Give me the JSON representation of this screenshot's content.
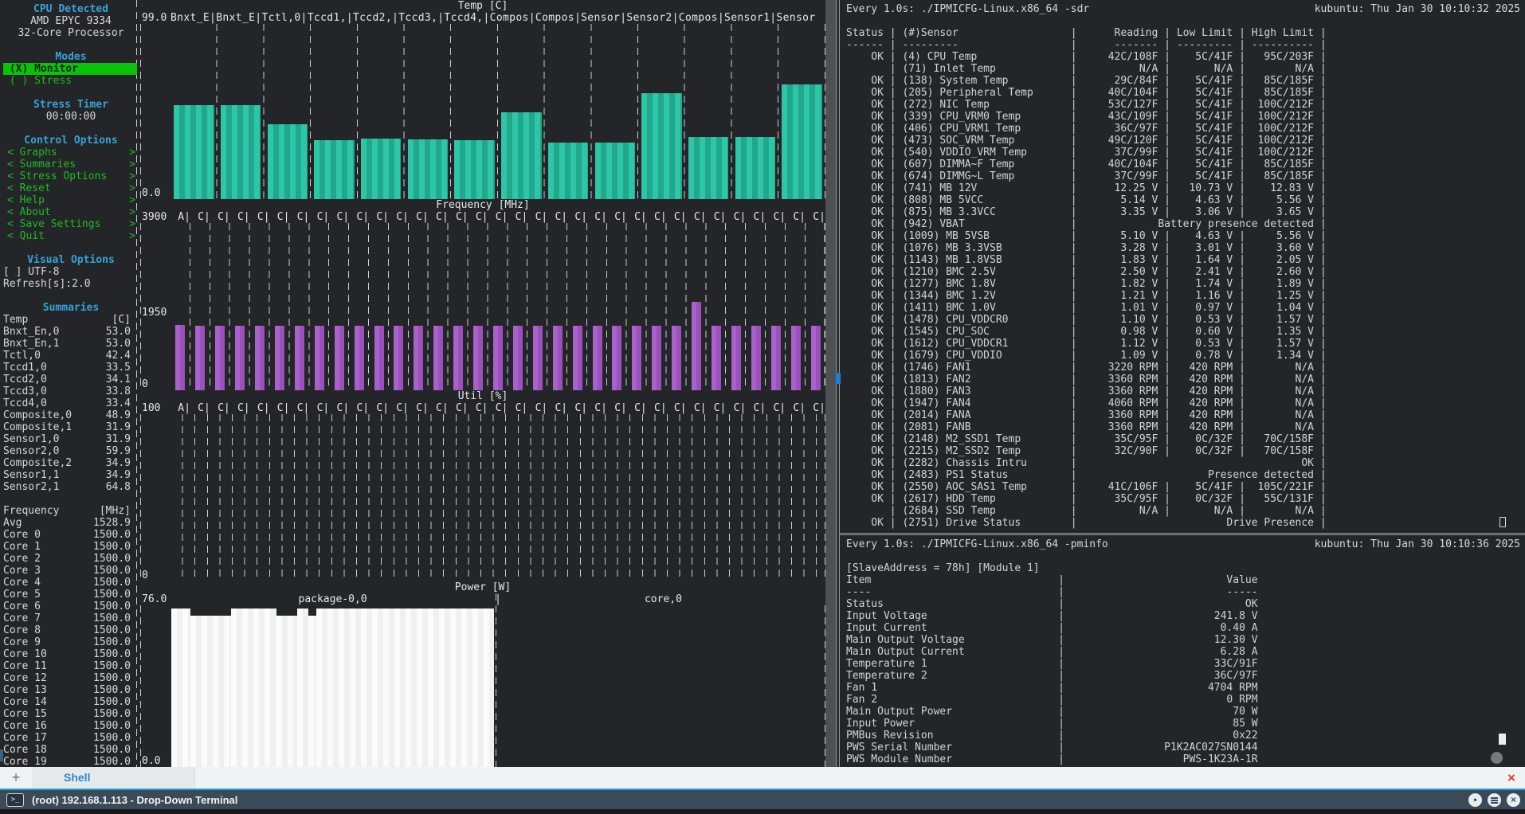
{
  "colors": {
    "background": "#232528",
    "accent_blue": "#36a3d9",
    "green": "#1fbc1f",
    "selected_green": "#09c309",
    "teal_bar": "#2dc6a6",
    "purple_bar": "#a05cc0",
    "power_white": "#fbfbfb",
    "titlebar": "#3b4a58",
    "titlebar_accent": "#2b9fdc",
    "tab_text": "#2b87c8",
    "close_red": "#e03b30"
  },
  "stui": {
    "cpu": {
      "title": "CPU Detected",
      "model": "AMD EPYC 9334",
      "cores": "32-Core Processor"
    },
    "modes": {
      "title": "Modes",
      "items": [
        {
          "label": "(X) Monitor",
          "selected": true
        },
        {
          "label": "( ) Stress",
          "selected": false
        }
      ]
    },
    "stress_timer": {
      "title": "Stress Timer",
      "value": "00:00:00"
    },
    "controls": {
      "title": "Control Options",
      "items": [
        "Graphs",
        "Summaries",
        "Stress Options",
        "Reset",
        "Help",
        "About",
        "Save Settings",
        "Quit"
      ],
      "arrow_left": "<",
      "arrow_right": ">"
    },
    "visual": {
      "title": "Visual Options",
      "items": [
        "[ ] UTF-8",
        "Refresh[s]:2.0"
      ]
    },
    "summaries": {
      "title": "Summaries",
      "temp_label": "Temp",
      "temp_unit": "[C]",
      "temp_rows": [
        [
          "Bnxt_En,0",
          "53.0"
        ],
        [
          "Bnxt_En,1",
          "53.0"
        ],
        [
          "Tctl,0",
          "42.4"
        ],
        [
          "Tccd1,0",
          "33.5"
        ],
        [
          "Tccd2,0",
          "34.1"
        ],
        [
          "Tccd3,0",
          "33.8"
        ],
        [
          "Tccd4,0",
          "33.4"
        ],
        [
          "Composite,0",
          "48.9"
        ],
        [
          "Composite,1",
          "31.9"
        ],
        [
          "Sensor1,0",
          "31.9"
        ],
        [
          "Sensor2,0",
          "59.9"
        ],
        [
          "Composite,2",
          "34.9"
        ],
        [
          "Sensor1,1",
          "34.9"
        ],
        [
          "Sensor2,1",
          "64.8"
        ]
      ],
      "freq_label": "Frequency",
      "freq_unit": "[MHz]",
      "freq_rows": [
        [
          "Avg",
          "1528.9"
        ],
        [
          "Core 0",
          "1500.0"
        ],
        [
          "Core 1",
          "1500.0"
        ],
        [
          "Core 2",
          "1500.0"
        ],
        [
          "Core 3",
          "1500.0"
        ],
        [
          "Core 4",
          "1500.0"
        ],
        [
          "Core 5",
          "1500.0"
        ],
        [
          "Core 6",
          "1500.0"
        ],
        [
          "Core 7",
          "1500.0"
        ],
        [
          "Core 8",
          "1500.0"
        ],
        [
          "Core 9",
          "1500.0"
        ],
        [
          "Core 10",
          "1500.0"
        ],
        [
          "Core 11",
          "1500.0"
        ],
        [
          "Core 12",
          "1500.0"
        ],
        [
          "Core 13",
          "1500.0"
        ],
        [
          "Core 14",
          "1500.0"
        ],
        [
          "Core 15",
          "1500.0"
        ],
        [
          "Core 16",
          "1500.0"
        ],
        [
          "Core 17",
          "1500.0"
        ],
        [
          "Core 18",
          "1500.0"
        ],
        [
          "Core 19",
          "1500.0"
        ]
      ]
    }
  },
  "chart_data": [
    {
      "id": "temp",
      "type": "bar",
      "title": "Temp [C]",
      "ymax": 99,
      "ymax_label": "99.0",
      "min_label": "0.0",
      "axis_header": "Bnxt_E|Bnxt_E|Tctl,0|Tccd1,|Tccd2,|Tccd3,|Tccd4,|Compos|Compos|Sensor|Sensor2|Compos|Sensor1|Sensor",
      "categories": [
        "Bnxt_En,0",
        "Bnxt_En,1",
        "Tctl,0",
        "Tccd1,0",
        "Tccd2,0",
        "Tccd3,0",
        "Tccd4,0",
        "Composite,0",
        "Composite,1",
        "Sensor1,0",
        "Sensor2,0",
        "Composite,2",
        "Sensor1,1",
        "Sensor2,1"
      ],
      "values": [
        53,
        53,
        42.4,
        33.5,
        34.1,
        33.8,
        33.4,
        48.9,
        31.9,
        31.9,
        59.9,
        34.9,
        34.9,
        64.8
      ]
    },
    {
      "id": "freq",
      "type": "bar",
      "title": "Frequency [MHz]",
      "ymax": 3900,
      "ymax_label": "3900",
      "mid_label": "1950",
      "min_label": "0",
      "columns": {
        "first": "A",
        "repeat": "C",
        "repeat_count": 32
      },
      "values": [
        1529,
        1500,
        1500,
        1500,
        1500,
        1500,
        1500,
        1500,
        1500,
        1500,
        1500,
        1500,
        1500,
        1500,
        1500,
        1500,
        1500,
        1500,
        1500,
        1500,
        1500,
        1500,
        1500,
        1500,
        1500,
        1500,
        2060,
        1500,
        1500,
        1500,
        1500,
        1500,
        1500
      ]
    },
    {
      "id": "util",
      "type": "bar",
      "title": "Util [%]",
      "ymax": 100,
      "ymax_label": "100",
      "min_label": "0",
      "columns": {
        "first": "A",
        "repeat": "C",
        "repeat_count": 32
      },
      "values": [
        0,
        0,
        0,
        0,
        0,
        0,
        0,
        0,
        0,
        0,
        0,
        0,
        0,
        0,
        0,
        0,
        0,
        0,
        0,
        0,
        0,
        0,
        0,
        0,
        0,
        0,
        0,
        0,
        0,
        0,
        0,
        0,
        0
      ]
    },
    {
      "id": "power",
      "type": "area",
      "title": "Power [W]",
      "ymax": 76,
      "ymax_label": "76.0",
      "min_label": "0.0",
      "series": [
        {
          "name": "package-0,0",
          "steps": [
            [
              0,
              0.06,
              74.5
            ],
            [
              0.06,
              0.185,
              71
            ],
            [
              0.185,
              0.325,
              74.5
            ],
            [
              0.325,
              0.39,
              71
            ],
            [
              0.39,
              0.425,
              74.5
            ],
            [
              0.425,
              0.45,
              71
            ],
            [
              0.45,
              1,
              74.5
            ]
          ]
        },
        {
          "name": "core,0",
          "steps": [
            [
              0,
              1,
              0
            ]
          ]
        }
      ],
      "separator": "|"
    }
  ],
  "watch_sdr": {
    "command": "Every 1.0s: ./IPMICFG-Linux.x86_64 -sdr",
    "host_time": "kubuntu: Thu Jan 30 10:10:32 2025",
    "columns": [
      "Status",
      "(#)Sensor",
      "Reading",
      "Low Limit",
      "High Limit"
    ],
    "rows": [
      {
        "status": "OK",
        "sensor": "(4) CPU Temp",
        "reading": "42C/108F",
        "low": "5C/41F",
        "high": "95C/203F"
      },
      {
        "status": "",
        "sensor": "(71) Inlet Temp",
        "reading": "N/A",
        "low": "N/A",
        "high": "N/A"
      },
      {
        "status": "OK",
        "sensor": "(138) System Temp",
        "reading": "29C/84F",
        "low": "5C/41F",
        "high": "85C/185F"
      },
      {
        "status": "OK",
        "sensor": "(205) Peripheral Temp",
        "reading": "40C/104F",
        "low": "5C/41F",
        "high": "85C/185F"
      },
      {
        "status": "OK",
        "sensor": "(272) NIC Temp",
        "reading": "53C/127F",
        "low": "5C/41F",
        "high": "100C/212F"
      },
      {
        "status": "OK",
        "sensor": "(339) CPU_VRM0 Temp",
        "reading": "43C/109F",
        "low": "5C/41F",
        "high": "100C/212F"
      },
      {
        "status": "OK",
        "sensor": "(406) CPU_VRM1 Temp",
        "reading": "36C/97F",
        "low": "5C/41F",
        "high": "100C/212F"
      },
      {
        "status": "OK",
        "sensor": "(473) SOC_VRM Temp",
        "reading": "49C/120F",
        "low": "5C/41F",
        "high": "100C/212F"
      },
      {
        "status": "OK",
        "sensor": "(540) VDDIO_VRM Temp",
        "reading": "37C/99F",
        "low": "5C/41F",
        "high": "100C/212F"
      },
      {
        "status": "OK",
        "sensor": "(607) DIMMA~F Temp",
        "reading": "40C/104F",
        "low": "5C/41F",
        "high": "85C/185F"
      },
      {
        "status": "OK",
        "sensor": "(674) DIMMG~L Temp",
        "reading": "37C/99F",
        "low": "5C/41F",
        "high": "85C/185F"
      },
      {
        "status": "OK",
        "sensor": "(741) MB 12V",
        "reading": "12.25 V",
        "low": "10.73 V",
        "high": "12.83 V"
      },
      {
        "status": "OK",
        "sensor": "(808) MB 5VCC",
        "reading": "5.14 V",
        "low": "4.63 V",
        "high": "5.56 V"
      },
      {
        "status": "OK",
        "sensor": "(875) MB 3.3VCC",
        "reading": "3.35 V",
        "low": "3.06 V",
        "high": "3.65 V"
      },
      {
        "status": "OK",
        "sensor": "(942) VBAT",
        "span": "Battery presence detected"
      },
      {
        "status": "OK",
        "sensor": "(1009) MB 5VSB",
        "reading": "5.10 V",
        "low": "4.63 V",
        "high": "5.56 V"
      },
      {
        "status": "OK",
        "sensor": "(1076) MB 3.3VSB",
        "reading": "3.28 V",
        "low": "3.01 V",
        "high": "3.60 V"
      },
      {
        "status": "OK",
        "sensor": "(1143) MB 1.8VSB",
        "reading": "1.83 V",
        "low": "1.64 V",
        "high": "2.05 V"
      },
      {
        "status": "OK",
        "sensor": "(1210) BMC 2.5V",
        "reading": "2.50 V",
        "low": "2.41 V",
        "high": "2.60 V"
      },
      {
        "status": "OK",
        "sensor": "(1277) BMC 1.8V",
        "reading": "1.82 V",
        "low": "1.74 V",
        "high": "1.89 V"
      },
      {
        "status": "OK",
        "sensor": "(1344) BMC 1.2V",
        "reading": "1.21 V",
        "low": "1.16 V",
        "high": "1.25 V"
      },
      {
        "status": "OK",
        "sensor": "(1411) BMC 1.0V",
        "reading": "1.01 V",
        "low": "0.97 V",
        "high": "1.04 V"
      },
      {
        "status": "OK",
        "sensor": "(1478) CPU_VDDCR0",
        "reading": "1.10 V",
        "low": "0.53 V",
        "high": "1.57 V"
      },
      {
        "status": "OK",
        "sensor": "(1545) CPU_SOC",
        "reading": "0.98 V",
        "low": "0.60 V",
        "high": "1.35 V"
      },
      {
        "status": "OK",
        "sensor": "(1612) CPU_VDDCR1",
        "reading": "1.12 V",
        "low": "0.53 V",
        "high": "1.57 V"
      },
      {
        "status": "OK",
        "sensor": "(1679) CPU_VDDIO",
        "reading": "1.09 V",
        "low": "0.78 V",
        "high": "1.34 V"
      },
      {
        "status": "OK",
        "sensor": "(1746) FAN1",
        "reading": "3220 RPM",
        "low": "420 RPM",
        "high": "N/A"
      },
      {
        "status": "OK",
        "sensor": "(1813) FAN2",
        "reading": "3360 RPM",
        "low": "420 RPM",
        "high": "N/A"
      },
      {
        "status": "OK",
        "sensor": "(1880) FAN3",
        "reading": "3360 RPM",
        "low": "420 RPM",
        "high": "N/A"
      },
      {
        "status": "OK",
        "sensor": "(1947) FAN4",
        "reading": "4060 RPM",
        "low": "420 RPM",
        "high": "N/A"
      },
      {
        "status": "OK",
        "sensor": "(2014) FANA",
        "reading": "3360 RPM",
        "low": "420 RPM",
        "high": "N/A"
      },
      {
        "status": "OK",
        "sensor": "(2081) FANB",
        "reading": "3360 RPM",
        "low": "420 RPM",
        "high": "N/A"
      },
      {
        "status": "OK",
        "sensor": "(2148) M2_SSD1 Temp",
        "reading": "35C/95F",
        "low": "0C/32F",
        "high": "70C/158F"
      },
      {
        "status": "OK",
        "sensor": "(2215) M2_SSD2 Temp",
        "reading": "32C/90F",
        "low": "0C/32F",
        "high": "70C/158F"
      },
      {
        "status": "OK",
        "sensor": "(2282) Chassis Intru",
        "span": "OK"
      },
      {
        "status": "OK",
        "sensor": "(2483) PS1 Status",
        "span": "Presence detected"
      },
      {
        "status": "OK",
        "sensor": "(2550) AOC_SAS1 Temp",
        "reading": "41C/106F",
        "low": "5C/41F",
        "high": "105C/221F"
      },
      {
        "status": "OK",
        "sensor": "(2617) HDD Temp",
        "reading": "35C/95F",
        "low": "0C/32F",
        "high": "55C/131F"
      },
      {
        "status": "",
        "sensor": "(2684) SSD Temp",
        "reading": "N/A",
        "low": "N/A",
        "high": "N/A"
      },
      {
        "status": "OK",
        "sensor": "(2751) Drive Status",
        "span": "Drive Presence"
      }
    ]
  },
  "watch_pminfo": {
    "command": "Every 1.0s: ./IPMICFG-Linux.x86_64 -pminfo",
    "host_time": "kubuntu: Thu Jan 30 10:10:36 2025",
    "module_line": "[SlaveAddress = 78h] [Module 1]",
    "columns": [
      "Item",
      "Value"
    ],
    "rows": [
      [
        "Status",
        "OK"
      ],
      [
        "Input Voltage",
        "241.8 V"
      ],
      [
        "Input Current",
        "0.40 A"
      ],
      [
        "Main Output Voltage",
        "12.30 V"
      ],
      [
        "Main Output Current",
        "6.28 A"
      ],
      [
        "Temperature 1",
        "33C/91F"
      ],
      [
        "Temperature 2",
        "36C/97F"
      ],
      [
        "Fan 1",
        "4704 RPM"
      ],
      [
        "Fan 2",
        "0 RPM"
      ],
      [
        "Main Output Power",
        "70 W"
      ],
      [
        "Input Power",
        "85 W"
      ],
      [
        "PMBus Revision",
        "0x22"
      ],
      [
        "PWS Serial Number",
        "P1K2AC027SN0144"
      ],
      [
        "PWS Module Number",
        "PWS-1K23A-1R"
      ]
    ]
  },
  "window": {
    "tab_bar": {
      "new_tab_icon": "+",
      "tabs": [
        {
          "label": "Shell"
        }
      ],
      "close_icon": "×"
    },
    "title_bar": {
      "icon_glyph": ">_",
      "title": "(root) 192.168.1.113 - Drop-Down Terminal",
      "buttons": {
        "dot": "•",
        "close": "×"
      }
    }
  }
}
